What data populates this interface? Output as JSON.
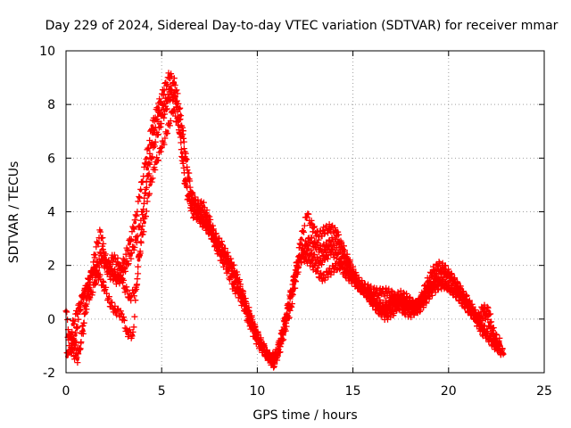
{
  "chart_data": {
    "type": "scatter",
    "title": "Day 229 of 2024, Sidereal Day-to-day VTEC variation (SDTVAR) for receiver mmar",
    "xlabel": "GPS time / hours",
    "ylabel": "SDTVAR / TECUs",
    "xlim": [
      0,
      25
    ],
    "ylim": [
      -2,
      10
    ],
    "xticks": [
      "0",
      "5",
      "10",
      "15",
      "20",
      "25"
    ],
    "yticks": [
      "-2",
      "0",
      "2",
      "4",
      "6",
      "8",
      "10"
    ],
    "grid": true,
    "marker": "+",
    "series": [
      {
        "name": "track-a",
        "color": "#ff0000",
        "x": [
          0.0,
          0.3,
          0.6,
          0.9,
          1.2,
          1.5,
          1.8,
          2.1,
          2.4,
          2.7,
          3.0,
          3.3,
          3.6,
          3.9,
          4.2,
          4.5,
          4.8,
          5.1,
          5.4,
          5.7,
          6.0,
          6.3,
          6.6,
          6.9,
          7.2,
          7.5,
          7.8,
          8.1,
          8.4,
          8.7,
          9.0,
          9.3,
          9.6,
          9.9,
          10.2,
          10.5,
          10.8,
          11.1,
          11.4,
          11.7,
          12.0,
          12.3,
          12.6,
          12.9,
          13.2,
          13.5,
          13.8,
          14.1,
          14.4,
          14.7,
          15.0,
          15.3,
          15.6,
          15.9,
          16.2,
          16.5,
          16.8,
          17.1,
          17.4,
          17.7,
          18.0,
          18.3,
          18.6,
          18.9,
          19.2,
          19.5,
          19.8,
          20.1,
          20.4,
          20.7,
          21.0,
          21.3,
          21.6,
          21.9,
          22.2,
          22.5,
          22.8
        ],
        "y": [
          0.3,
          -1.2,
          -1.5,
          -0.4,
          1.2,
          2.4,
          3.3,
          2.2,
          1.8,
          1.6,
          2.1,
          2.8,
          3.6,
          4.8,
          6.0,
          7.2,
          7.9,
          8.5,
          9.1,
          8.8,
          7.6,
          5.9,
          4.5,
          4.3,
          4.2,
          3.7,
          3.1,
          2.8,
          2.4,
          2.0,
          1.5,
          0.8,
          0.2,
          -0.4,
          -0.9,
          -1.3,
          -1.5,
          -1.1,
          -0.2,
          0.8,
          1.8,
          3.0,
          3.9,
          3.4,
          3.1,
          3.3,
          3.4,
          3.3,
          2.8,
          2.3,
          1.8,
          1.4,
          1.2,
          1.1,
          1.0,
          1.0,
          1.0,
          0.9,
          0.5,
          0.3,
          0.2,
          0.4,
          0.9,
          1.4,
          1.8,
          2.0,
          1.9,
          1.6,
          1.3,
          1.0,
          0.6,
          0.2,
          -0.1,
          0.2,
          -0.3,
          -1.0,
          -1.2
        ]
      },
      {
        "name": "track-b",
        "color": "#ff0000",
        "x": [
          0.1,
          0.4,
          0.7,
          1.0,
          1.3,
          1.6,
          1.9,
          2.2,
          2.5,
          2.8,
          3.1,
          3.4,
          3.7,
          4.0,
          4.3,
          4.6,
          4.9,
          5.2,
          5.5,
          5.8,
          6.1,
          6.4,
          6.7,
          7.0,
          7.3,
          7.6,
          7.9,
          8.2,
          8.5,
          8.8,
          9.1,
          9.4,
          9.7,
          10.0,
          10.3,
          10.6,
          10.9,
          11.2,
          11.5,
          11.8,
          12.1,
          12.4,
          12.7,
          13.0,
          13.3,
          13.6,
          13.9,
          14.2,
          14.5,
          14.8,
          15.1,
          15.4,
          15.7,
          16.0,
          16.3,
          16.6,
          16.9,
          17.2,
          17.5,
          17.8,
          18.1,
          18.4,
          18.7,
          19.0,
          19.3,
          19.6,
          19.9,
          20.2,
          20.5,
          20.8,
          21.1,
          21.4,
          21.7,
          22.0,
          22.3,
          22.6,
          22.9
        ],
        "y": [
          -0.6,
          -0.9,
          -1.2,
          0.4,
          1.6,
          2.0,
          2.6,
          1.7,
          1.5,
          1.4,
          1.9,
          2.4,
          3.0,
          4.0,
          5.4,
          6.5,
          7.2,
          7.8,
          8.4,
          8.0,
          6.8,
          5.2,
          4.3,
          4.0,
          3.8,
          3.3,
          2.8,
          2.5,
          2.1,
          1.6,
          1.1,
          0.5,
          -0.1,
          -0.6,
          -1.0,
          -1.4,
          -1.6,
          -0.9,
          0.0,
          1.0,
          2.0,
          2.6,
          3.0,
          2.8,
          2.6,
          2.7,
          2.9,
          2.8,
          2.4,
          2.0,
          1.6,
          1.2,
          1.0,
          0.8,
          0.6,
          0.5,
          0.6,
          0.8,
          0.9,
          0.8,
          0.6,
          0.5,
          0.8,
          1.2,
          1.5,
          1.7,
          1.7,
          1.5,
          1.2,
          0.9,
          0.6,
          0.2,
          -0.2,
          -0.5,
          -0.9,
          -1.1,
          -1.3
        ]
      },
      {
        "name": "track-c",
        "color": "#ff0000",
        "x": [
          0.2,
          0.5,
          0.8,
          1.1,
          1.4,
          1.7,
          2.0,
          2.3,
          2.6,
          2.9,
          3.2,
          3.5,
          3.8,
          4.1,
          4.4,
          4.7,
          5.0,
          5.3,
          5.6,
          5.9,
          6.2,
          6.5,
          6.8,
          7.1,
          7.4,
          7.7,
          8.0,
          8.3,
          8.6,
          8.9,
          9.2,
          9.5,
          9.8,
          10.1,
          10.4,
          10.7,
          11.0,
          11.3,
          11.6,
          11.9,
          12.2,
          12.5,
          12.8,
          13.1,
          13.4,
          13.7,
          14.0,
          14.3,
          14.6,
          14.9,
          15.2,
          15.5,
          15.8,
          16.1,
          16.4,
          16.7,
          17.0,
          17.3,
          17.6,
          17.9,
          18.2,
          18.5,
          18.8,
          19.1,
          19.4,
          19.7,
          20.0,
          20.3,
          20.6,
          20.9,
          21.2,
          21.5,
          21.8,
          22.1,
          22.4,
          22.7
        ],
        "y": [
          -1.3,
          -0.6,
          0.6,
          1.3,
          1.8,
          1.6,
          1.2,
          0.6,
          0.3,
          0.2,
          -0.5,
          -0.6,
          2.2,
          3.6,
          5.0,
          5.8,
          6.4,
          7.0,
          7.8,
          7.2,
          5.2,
          4.4,
          4.0,
          3.6,
          3.4,
          3.0,
          2.6,
          2.3,
          2.0,
          1.4,
          0.8,
          0.2,
          -0.3,
          -0.8,
          -1.2,
          -1.5,
          -1.3,
          -0.5,
          0.4,
          1.3,
          2.2,
          2.3,
          2.1,
          1.8,
          1.5,
          1.7,
          1.9,
          2.0,
          1.7,
          1.5,
          1.3,
          1.1,
          0.9,
          0.6,
          0.3,
          0.1,
          0.2,
          0.4,
          0.6,
          0.5,
          0.3,
          0.4,
          0.7,
          1.0,
          1.2,
          1.3,
          1.2,
          1.0,
          0.8,
          0.5,
          0.2,
          0.0,
          0.4,
          0.3,
          -0.6,
          -0.9
        ]
      },
      {
        "name": "track-d",
        "color": "#ff0000",
        "x": [
          0.05,
          0.35,
          0.65,
          0.95,
          1.25,
          1.55,
          1.85,
          2.15,
          2.45,
          2.75,
          3.05,
          3.35,
          3.65,
          3.95,
          4.25,
          4.55,
          4.85,
          5.15,
          5.45,
          5.75,
          6.05,
          6.35,
          6.65,
          6.95,
          7.25,
          7.55,
          7.85,
          8.15,
          8.45,
          8.75,
          9.05,
          9.35,
          9.65,
          9.95,
          10.25,
          10.55,
          10.85,
          11.15,
          11.45,
          11.75,
          12.05,
          12.35,
          12.65,
          12.95,
          13.25,
          13.55,
          13.85,
          14.15,
          14.45,
          14.75,
          15.05,
          15.35,
          15.65,
          15.95,
          16.25,
          16.55,
          16.85,
          17.15,
          17.45,
          17.75,
          18.05,
          18.35,
          18.65,
          18.95,
          19.25,
          19.55,
          19.85,
          20.15,
          20.45,
          20.75,
          21.05,
          21.35,
          21.65,
          21.95,
          22.25,
          22.55,
          22.85
        ],
        "y": [
          -1.4,
          -0.2,
          0.4,
          1.0,
          0.8,
          1.4,
          2.2,
          1.9,
          2.3,
          2.1,
          1.2,
          0.8,
          1.1,
          3.2,
          5.6,
          6.9,
          7.6,
          8.0,
          8.6,
          8.2,
          6.2,
          4.6,
          3.9,
          3.8,
          3.6,
          3.2,
          2.7,
          2.2,
          1.8,
          1.2,
          0.9,
          0.3,
          -0.3,
          -0.8,
          -1.1,
          -1.4,
          -1.7,
          -1.2,
          -0.4,
          0.4,
          1.6,
          2.6,
          2.6,
          2.3,
          2.1,
          2.3,
          2.5,
          2.4,
          2.1,
          1.8,
          1.5,
          1.2,
          1.0,
          0.7,
          0.4,
          0.3,
          0.4,
          0.6,
          0.7,
          0.6,
          0.4,
          0.5,
          0.8,
          1.1,
          1.3,
          1.4,
          1.3,
          1.1,
          0.9,
          0.6,
          0.4,
          0.1,
          -0.4,
          -0.6,
          -0.8,
          -1.0,
          -1.3
        ]
      }
    ]
  }
}
